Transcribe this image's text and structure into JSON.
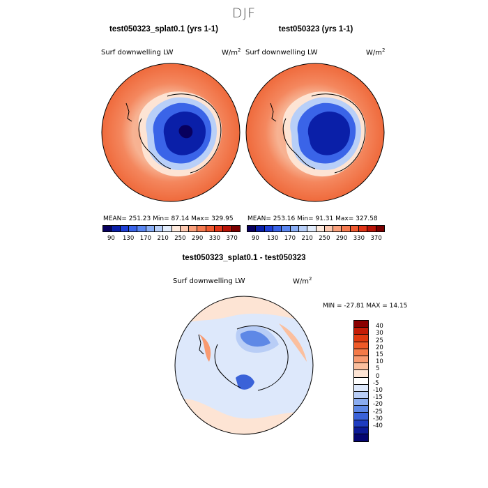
{
  "season": "DJF",
  "panels": [
    {
      "title": "test050323_splat0.1 (yrs 1-1)",
      "variable": "Surf downwelling LW",
      "units_base": "W/m",
      "units_exp": "2",
      "stats": "MEAN= 251.23  Min=  87.14  Max= 329.95"
    },
    {
      "title": "test050323 (yrs 1-1)",
      "variable": "Surf downwelling LW",
      "units_base": "W/m",
      "units_exp": "2",
      "stats": "MEAN= 253.16  Min=  91.31  Max= 327.58"
    }
  ],
  "abs_colorbar": {
    "ticks": [
      "90",
      "130",
      "170",
      "210",
      "250",
      "290",
      "330",
      "370"
    ],
    "colors": [
      "#08005e",
      "#0a1fa8",
      "#1f3fd6",
      "#3a64e8",
      "#5a86f0",
      "#8aaef5",
      "#b8cff8",
      "#e2ecfb",
      "#fde9dc",
      "#fcc8b0",
      "#f9a07c",
      "#f47a50",
      "#ef5a30",
      "#e03518",
      "#b81408",
      "#7a0000"
    ]
  },
  "diff_panel": {
    "title": "test050323_splat0.1 - test050323",
    "variable": "Surf downwelling LW",
    "units_base": "W/m",
    "units_exp": "2",
    "minmax": "MIN = -27.81 MAX =  14.15"
  },
  "diff_colorbar": {
    "ticks": [
      "40",
      "30",
      "25",
      "20",
      "15",
      "10",
      "5",
      "0",
      "-5",
      "-10",
      "-15",
      "-20",
      "-25",
      "-30",
      "-40"
    ],
    "colors": [
      "#8a0000",
      "#c41c06",
      "#e03a10",
      "#ee5a28",
      "#f47a48",
      "#f89a70",
      "#fbbf9e",
      "#fde4d4",
      "#ffffff",
      "#dde8fb",
      "#b8cdf6",
      "#8aacf0",
      "#5e88e6",
      "#3a62d8",
      "#1e3cc0",
      "#0c1a96",
      "#050570"
    ]
  }
}
